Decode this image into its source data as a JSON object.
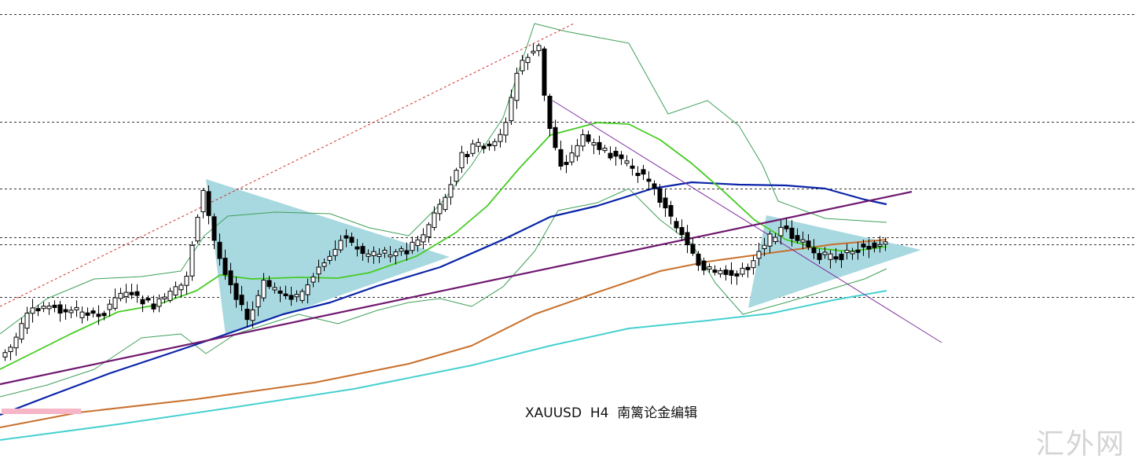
{
  "title": "XAUUSD  H4  南篱论金编辑",
  "watermark": "汇外网",
  "chart_data": {
    "type": "candlestick",
    "symbol": "XAUUSD",
    "timeframe": "H4",
    "grid": "horizontal dashed level lines",
    "levels": [
      0.03,
      0.265,
      0.41,
      0.515,
      0.53,
      0.645
    ],
    "colors": {
      "candle_up": "#ffffff",
      "candle_down": "#000000",
      "ma_fast": "#44cc22",
      "ma_mid": "#0a24a8",
      "ma_slow": "#c8702c",
      "ma_long": "#46d0d0",
      "bollinger": "#3fa05a",
      "triangle_fill": "#a8d8e0",
      "trendline": "#701870",
      "channel_dotted": "#d03030",
      "marker": "#f7b6c8"
    },
    "candles_approx_count": 160
  }
}
